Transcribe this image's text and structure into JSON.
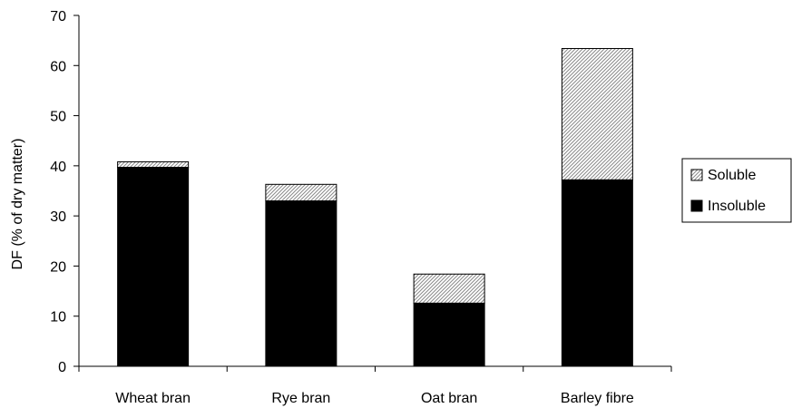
{
  "chart_data": {
    "type": "bar",
    "stacked": true,
    "categories": [
      "Wheat bran",
      "Rye bran",
      "Oat bran",
      "Barley fibre"
    ],
    "series": [
      {
        "name": "Insoluble",
        "values": [
          39.7,
          33.0,
          12.6,
          37.2
        ],
        "color": "#000000",
        "pattern": "solid"
      },
      {
        "name": "Soluble",
        "values": [
          1.1,
          3.3,
          5.8,
          26.2
        ],
        "color": "#c8c8c8",
        "pattern": "diagonal-hatch"
      }
    ],
    "ylabel": "DF (% of dry matter)",
    "xlabel": "",
    "title": "",
    "ylim": [
      0,
      70
    ],
    "yticks": [
      0,
      10,
      20,
      30,
      40,
      50,
      60,
      70
    ],
    "grid": false,
    "legend_position": "right",
    "legend_order": [
      "Soluble",
      "Insoluble"
    ]
  }
}
